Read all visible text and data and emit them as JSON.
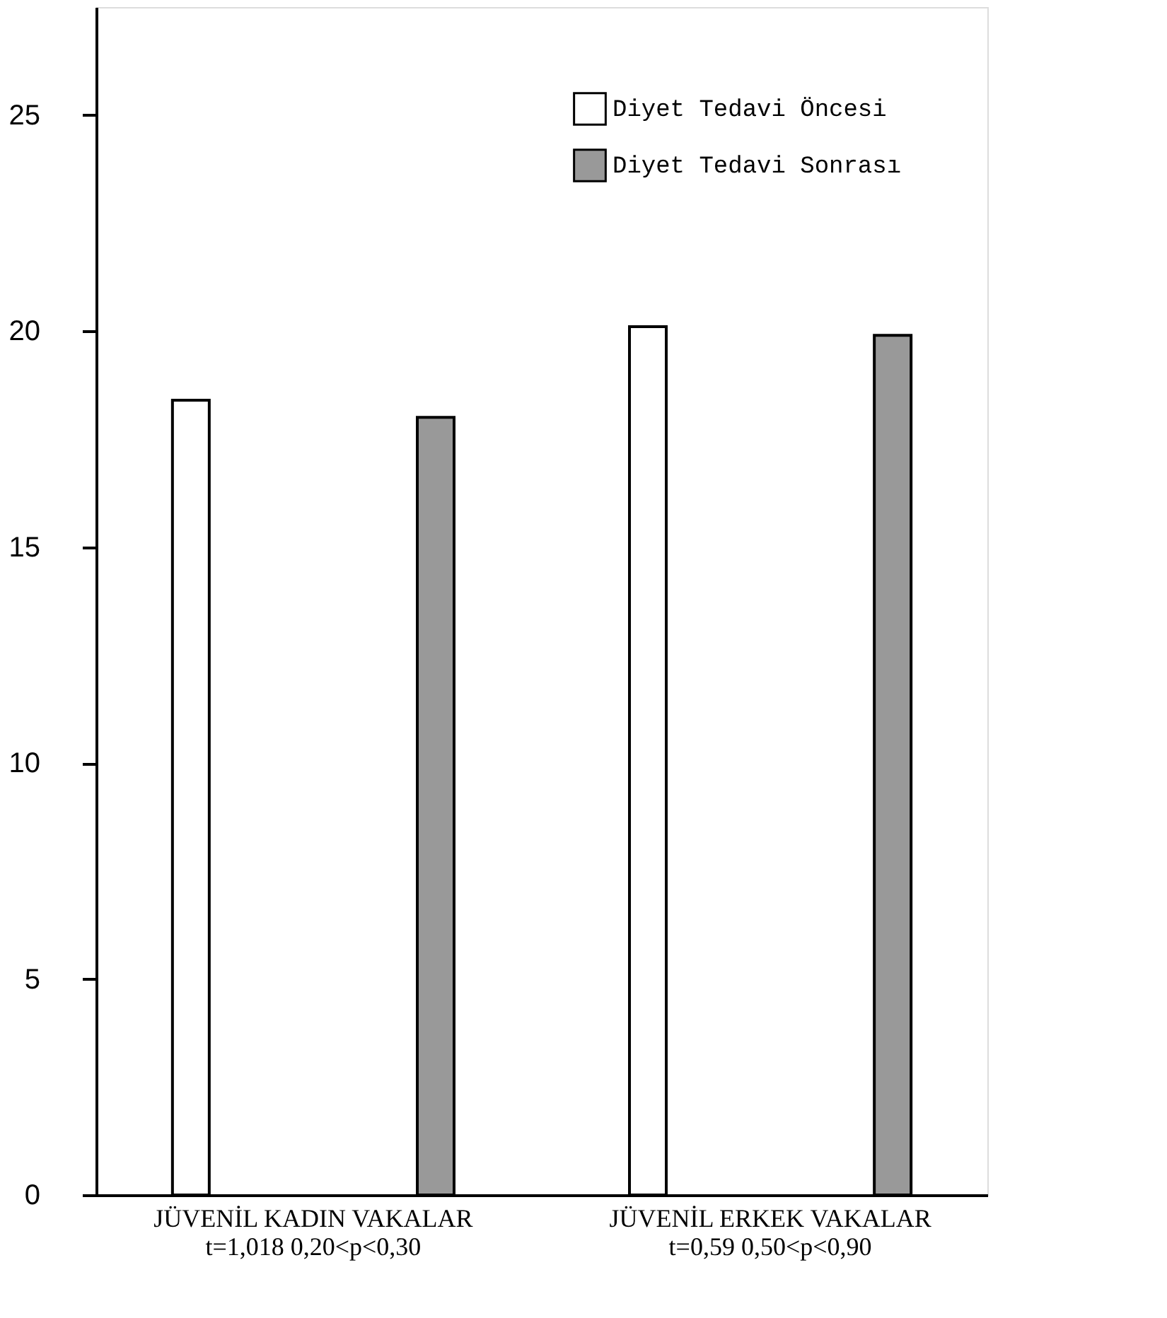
{
  "chart_data": {
    "type": "bar",
    "categories": [
      "JÜVENİL KADIN VAKALAR\nt=1,018  0,20<p<0,30",
      "JÜVENİL ERKEK VAKALAR\nt=0,59  0,50<p<0,90"
    ],
    "series": [
      {
        "name": "Diyet Tedavi Öncesi",
        "color": "#ffffff",
        "values": [
          18.4,
          20.1
        ]
      },
      {
        "name": "Diyet Tedavi Sonrası",
        "color": "#999999",
        "values": [
          18.0,
          19.9
        ]
      }
    ],
    "ylim": [
      0,
      27.5
    ],
    "yticks": [
      0,
      5,
      10,
      15,
      20,
      25
    ],
    "grid": false,
    "legend": "top right"
  }
}
